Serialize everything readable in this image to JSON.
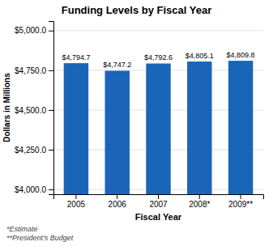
{
  "chart_data": {
    "type": "bar",
    "title": "Funding Levels by Fiscal Year",
    "categories": [
      "2005",
      "2006",
      "2007",
      "2008*",
      "2009**"
    ],
    "values": [
      4794.7,
      4747.2,
      4792.6,
      4805.1,
      4809.8
    ],
    "value_labels": [
      "$4,794.7",
      "$4,747.2",
      "$4,792.6",
      "$4,805.1",
      "$4,809.8"
    ],
    "data_labels": true,
    "color": "#1B65B8",
    "xlabel": "Fiscal Year",
    "ylabel": "Dollars in Millions",
    "ylim": [
      3970,
      5060
    ],
    "yticks": [
      {
        "value": 4000,
        "label": "$4,000.0"
      },
      {
        "value": 4250,
        "label": "$4,250.0"
      },
      {
        "value": 4500,
        "label": "$4,500.0"
      },
      {
        "value": 4750,
        "label": "$4,750.0"
      },
      {
        "value": 5000,
        "label": "$5,000.0"
      }
    ],
    "grid": true,
    "annotations": [
      "*Estimate",
      "**President's Budget"
    ]
  }
}
